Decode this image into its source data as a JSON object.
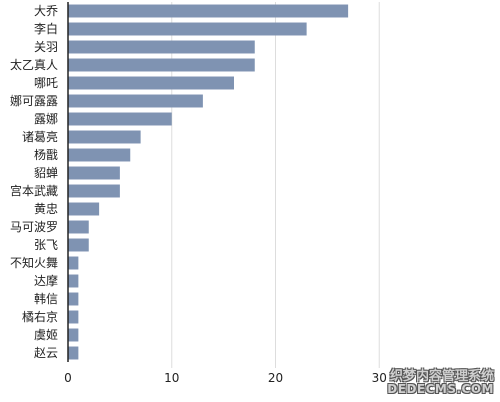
{
  "chart_data": {
    "type": "bar",
    "orientation": "horizontal",
    "categories": [
      "大乔",
      "李白",
      "关羽",
      "太乙真人",
      "哪吒",
      "娜可露露",
      "露娜",
      "诸葛亮",
      "杨戬",
      "貂蝉",
      "宫本武藏",
      "黄忠",
      "马可波罗",
      "张飞",
      "不知火舞",
      "达摩",
      "韩信",
      "橘右京",
      "虞姬",
      "赵云"
    ],
    "values": [
      27,
      23,
      18,
      18,
      16,
      13,
      10,
      7,
      6,
      5,
      5,
      3,
      2,
      2,
      1,
      1,
      1,
      1,
      1,
      1
    ],
    "xlim": [
      0,
      40
    ],
    "xticks": [
      "0",
      "10",
      "20",
      "30"
    ],
    "grid": "vertical",
    "bar_color": "#7f93b2",
    "title": "",
    "xlabel": "",
    "ylabel": ""
  },
  "watermark": {
    "line1": "织梦内容管理系统",
    "line2": "DEDECMS.COM"
  }
}
